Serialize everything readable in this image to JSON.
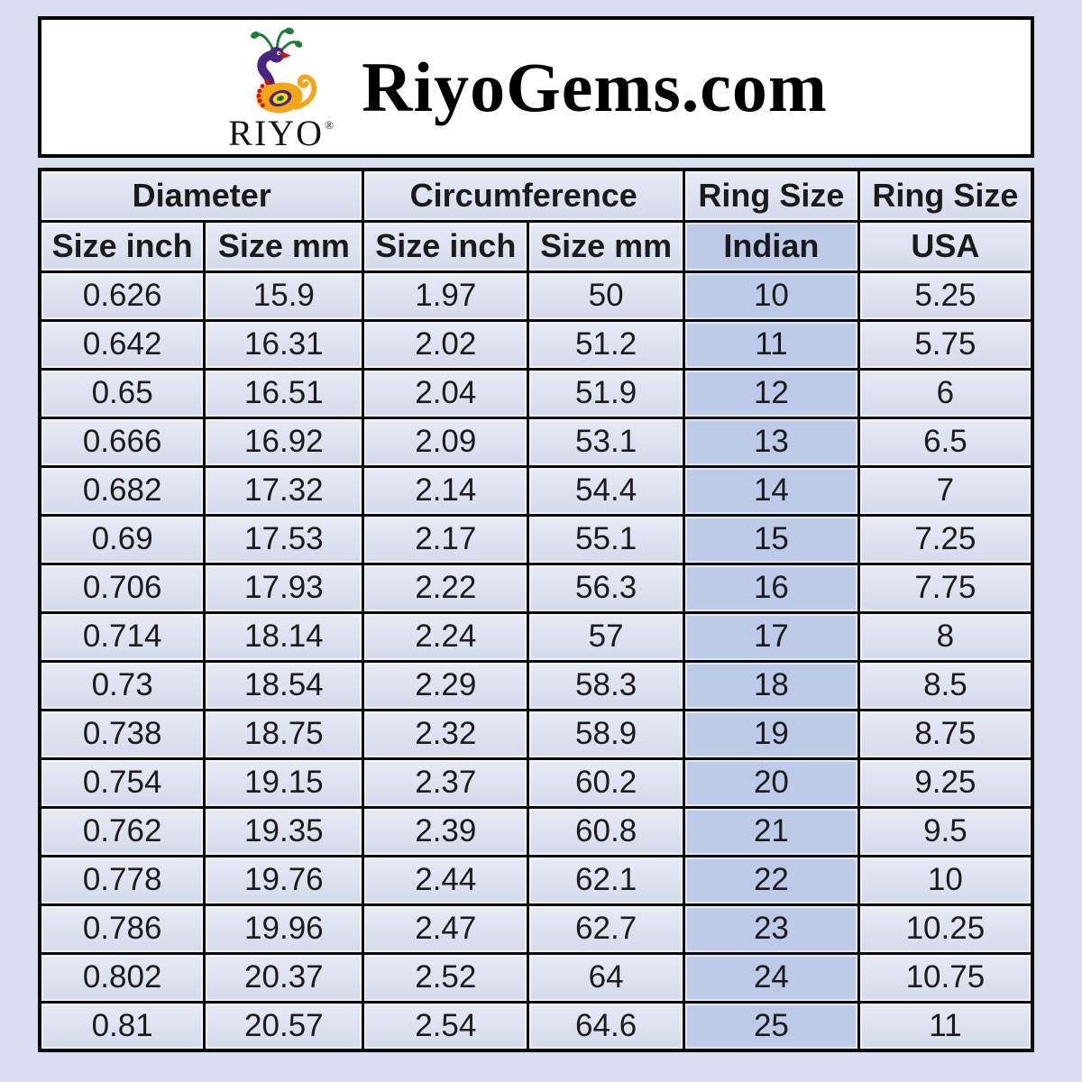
{
  "page": {
    "background": "#d8def0"
  },
  "header": {
    "title": "RiyoGems.com",
    "logo": {
      "brand": "RIYO",
      "registered_mark": "®",
      "icon": "peacock"
    }
  },
  "table": {
    "group_headers": [
      {
        "label": "Diameter",
        "colspan": 2
      },
      {
        "label": "Circumference",
        "colspan": 2
      },
      {
        "label": "Ring Size",
        "colspan": 1
      },
      {
        "label": "Ring Size",
        "colspan": 1
      }
    ],
    "sub_headers": [
      "Size inch",
      "Size mm",
      "Size inch",
      "Size mm",
      "Indian",
      "USA"
    ],
    "highlight_column": 4,
    "rows": [
      [
        "0.626",
        "15.9",
        "1.97",
        "50",
        "10",
        "5.25"
      ],
      [
        "0.642",
        "16.31",
        "2.02",
        "51.2",
        "11",
        "5.75"
      ],
      [
        "0.65",
        "16.51",
        "2.04",
        "51.9",
        "12",
        "6"
      ],
      [
        "0.666",
        "16.92",
        "2.09",
        "53.1",
        "13",
        "6.5"
      ],
      [
        "0.682",
        "17.32",
        "2.14",
        "54.4",
        "14",
        "7"
      ],
      [
        "0.69",
        "17.53",
        "2.17",
        "55.1",
        "15",
        "7.25"
      ],
      [
        "0.706",
        "17.93",
        "2.22",
        "56.3",
        "16",
        "7.75"
      ],
      [
        "0.714",
        "18.14",
        "2.24",
        "57",
        "17",
        "8"
      ],
      [
        "0.73",
        "18.54",
        "2.29",
        "58.3",
        "18",
        "8.5"
      ],
      [
        "0.738",
        "18.75",
        "2.32",
        "58.9",
        "19",
        "8.75"
      ],
      [
        "0.754",
        "19.15",
        "2.37",
        "60.2",
        "20",
        "9.25"
      ],
      [
        "0.762",
        "19.35",
        "2.39",
        "60.8",
        "21",
        "9.5"
      ],
      [
        "0.778",
        "19.76",
        "2.44",
        "62.1",
        "22",
        "10"
      ],
      [
        "0.786",
        "19.96",
        "2.47",
        "62.7",
        "23",
        "10.25"
      ],
      [
        "0.802",
        "20.37",
        "2.52",
        "64",
        "24",
        "10.75"
      ],
      [
        "0.81",
        "20.57",
        "2.54",
        "64.6",
        "25",
        "11"
      ]
    ],
    "column_widths_pct": [
      16.6,
      16.0,
      16.6,
      15.7,
      17.6,
      17.5
    ]
  },
  "colors": {
    "page_bg": "#d8def0",
    "cell_bg": "#dde2f1",
    "highlight_bg": "#bdcae8",
    "border": "#0a0a0a",
    "text": "#1b1b1b",
    "logo_purple": "#472581",
    "logo_orange": "#f2a516",
    "logo_green": "#1e7b35",
    "logo_red": "#d41212"
  },
  "chart_data": {
    "type": "table",
    "title": "RiyoGems.com ring size conversion chart",
    "columns": [
      "Diameter Size inch",
      "Diameter Size mm",
      "Circumference Size inch",
      "Circumference Size mm",
      "Ring Size Indian",
      "Ring Size USA"
    ],
    "rows": [
      [
        0.626,
        15.9,
        1.97,
        50,
        10,
        5.25
      ],
      [
        0.642,
        16.31,
        2.02,
        51.2,
        11,
        5.75
      ],
      [
        0.65,
        16.51,
        2.04,
        51.9,
        12,
        6
      ],
      [
        0.666,
        16.92,
        2.09,
        53.1,
        13,
        6.5
      ],
      [
        0.682,
        17.32,
        2.14,
        54.4,
        14,
        7
      ],
      [
        0.69,
        17.53,
        2.17,
        55.1,
        15,
        7.25
      ],
      [
        0.706,
        17.93,
        2.22,
        56.3,
        16,
        7.75
      ],
      [
        0.714,
        18.14,
        2.24,
        57,
        17,
        8
      ],
      [
        0.73,
        18.54,
        2.29,
        58.3,
        18,
        8.5
      ],
      [
        0.738,
        18.75,
        2.32,
        58.9,
        19,
        8.75
      ],
      [
        0.754,
        19.15,
        2.37,
        60.2,
        20,
        9.25
      ],
      [
        0.762,
        19.35,
        2.39,
        60.8,
        21,
        9.5
      ],
      [
        0.778,
        19.76,
        2.44,
        62.1,
        22,
        10
      ],
      [
        0.786,
        19.96,
        2.47,
        62.7,
        23,
        10.25
      ],
      [
        0.802,
        20.37,
        2.52,
        64,
        24,
        10.75
      ],
      [
        0.81,
        20.57,
        2.54,
        64.6,
        25,
        11
      ]
    ]
  }
}
